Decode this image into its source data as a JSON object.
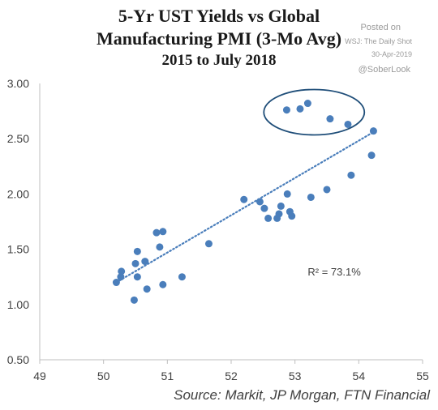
{
  "watermark": {
    "posted": "Posted on",
    "source": "WSJ: The Daily Shot",
    "date": "30-Apr-2019",
    "handle": "@SoberLook"
  },
  "chart_data": {
    "type": "scatter",
    "title_lines": [
      "5-Yr UST Yields vs Global",
      "Manufacturing PMI (3-Mo Avg)",
      "2015 to July 2018"
    ],
    "xlabel": "",
    "ylabel": "",
    "xlim": [
      49,
      55
    ],
    "ylim": [
      0.5,
      3.0
    ],
    "x_ticks": [
      "49",
      "50",
      "51",
      "52",
      "53",
      "54",
      "55"
    ],
    "y_ticks": [
      "0.50",
      "1.00",
      "1.50",
      "2.00",
      "2.50",
      "3.00"
    ],
    "grid": false,
    "trendline": {
      "style": "dotted",
      "from": [
        50.2,
        1.2
      ],
      "to": [
        54.2,
        2.55
      ]
    },
    "annotation": "R² = 73.1%",
    "highlight": {
      "shape": "ellipse",
      "note": "circled cluster"
    },
    "source": "Source:  Markit, JP Morgan, FTN Financial",
    "points": [
      [
        50.2,
        1.2
      ],
      [
        50.27,
        1.25
      ],
      [
        50.28,
        1.3
      ],
      [
        50.48,
        1.04
      ],
      [
        50.5,
        1.37
      ],
      [
        50.53,
        1.48
      ],
      [
        50.53,
        1.25
      ],
      [
        50.65,
        1.39
      ],
      [
        50.68,
        1.14
      ],
      [
        50.83,
        1.65
      ],
      [
        50.88,
        1.52
      ],
      [
        50.93,
        1.66
      ],
      [
        50.93,
        1.18
      ],
      [
        51.23,
        1.25
      ],
      [
        51.65,
        1.55
      ],
      [
        52.2,
        1.95
      ],
      [
        52.45,
        1.93
      ],
      [
        52.52,
        1.87
      ],
      [
        52.58,
        1.78
      ],
      [
        52.72,
        1.78
      ],
      [
        52.75,
        1.82
      ],
      [
        52.78,
        1.89
      ],
      [
        52.88,
        2.0
      ],
      [
        52.92,
        1.84
      ],
      [
        52.95,
        1.8
      ],
      [
        53.25,
        1.97
      ],
      [
        53.5,
        2.04
      ],
      [
        53.88,
        2.17
      ],
      [
        54.2,
        2.35
      ],
      [
        54.23,
        2.57
      ],
      [
        52.87,
        2.76
      ],
      [
        53.08,
        2.77
      ],
      [
        53.2,
        2.82
      ],
      [
        53.55,
        2.68
      ],
      [
        53.83,
        2.63
      ]
    ],
    "colors": {
      "points": "#4a7ebb",
      "trend": "#4a7ebb",
      "ellipse": "#1f4e79",
      "axis": "#bfbfbf"
    }
  }
}
